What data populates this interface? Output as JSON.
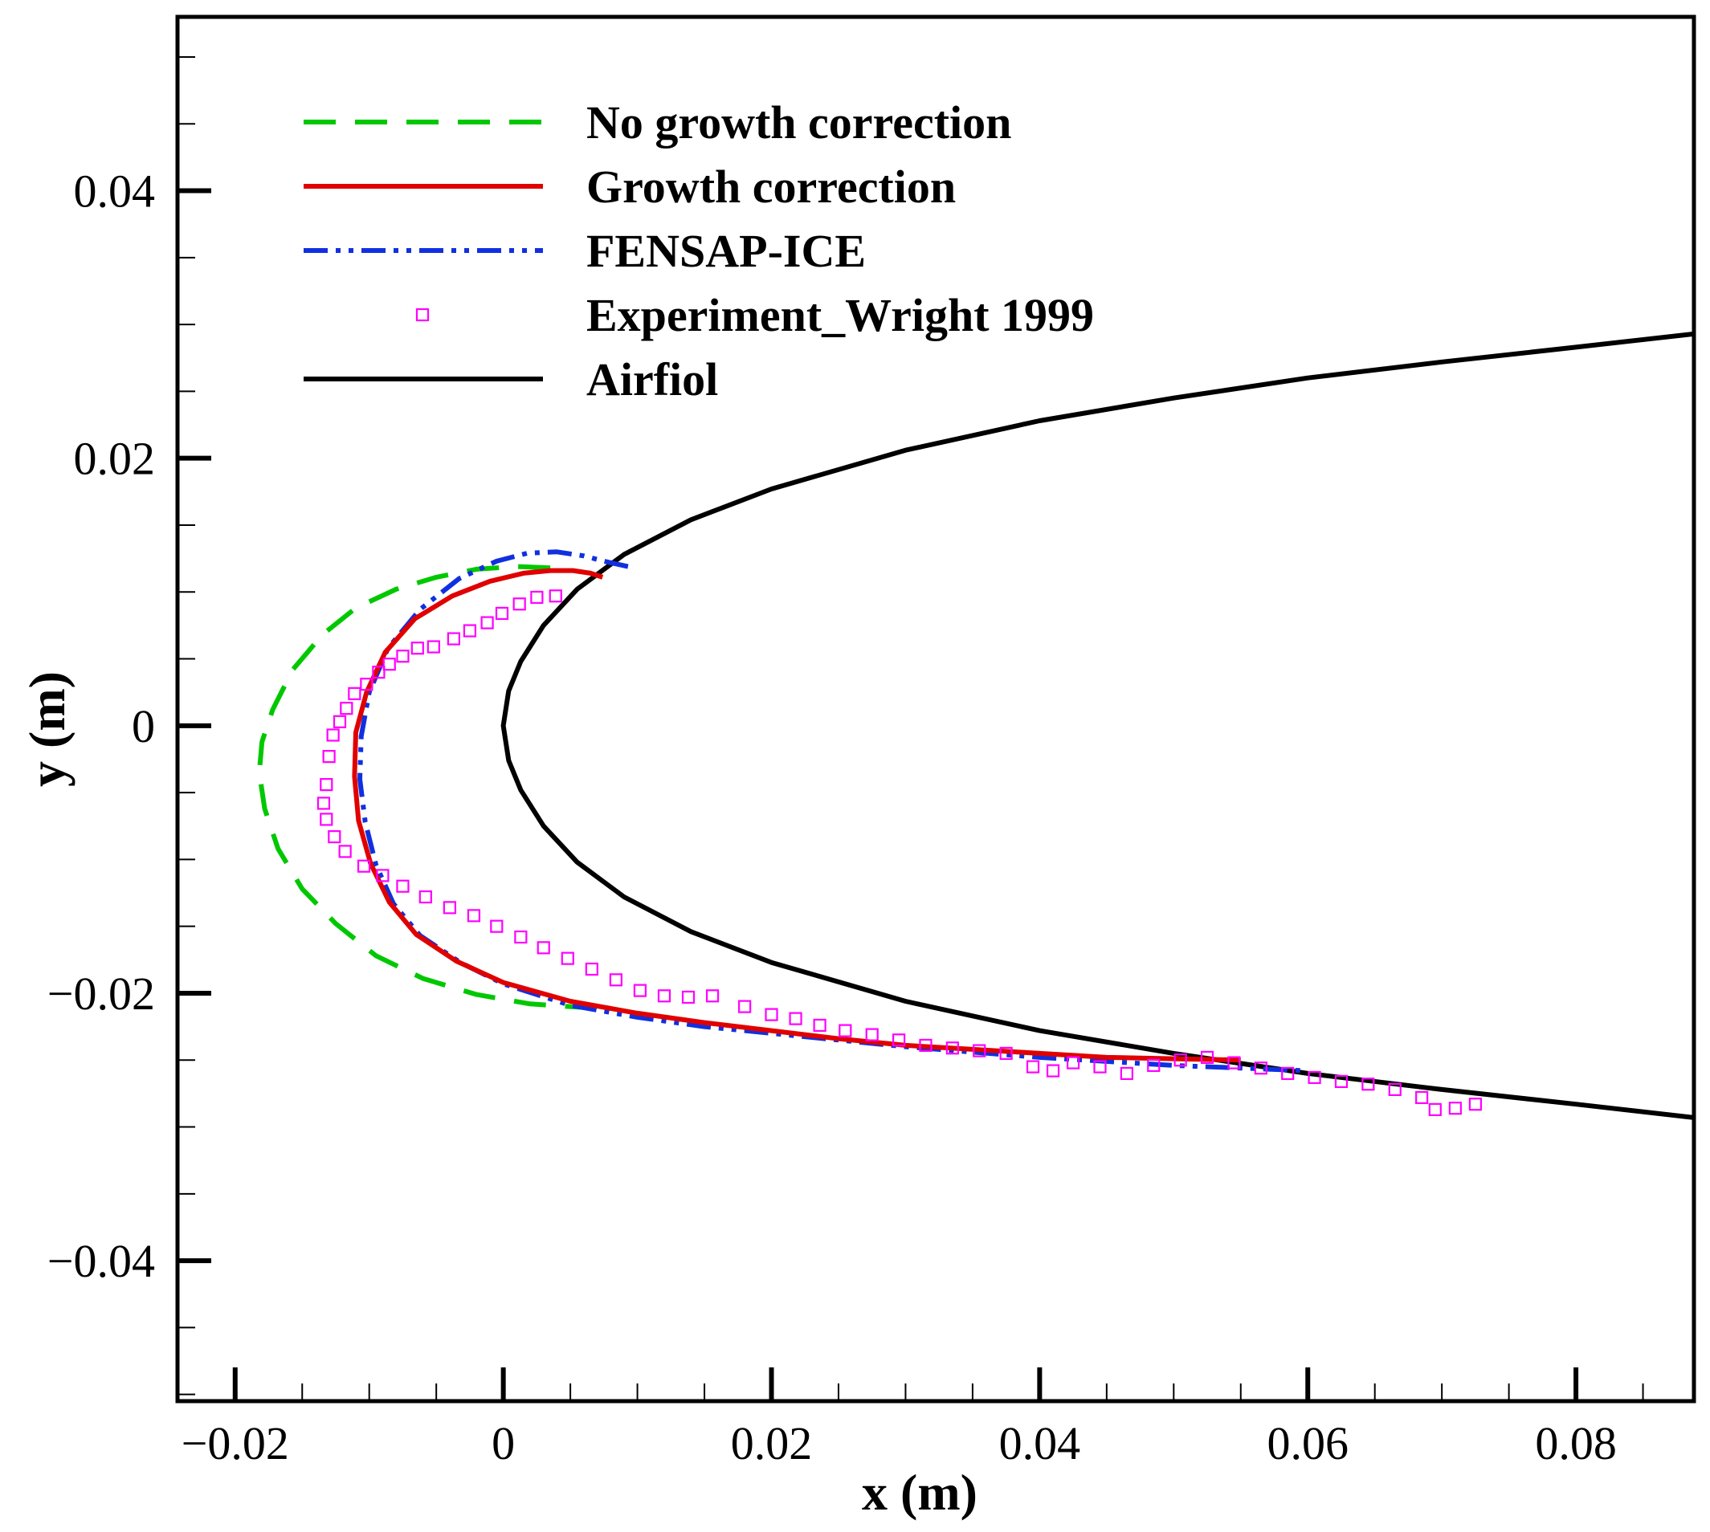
{
  "chart_data": {
    "type": "line",
    "title": "",
    "xlabel": "x (m)",
    "ylabel": "y (m)",
    "xlim": [
      -0.0243,
      0.0888
    ],
    "ylim": [
      -0.0505,
      0.053
    ],
    "grid": false,
    "legend_position": "top-left",
    "x_ticks": [
      {
        "value": -0.02,
        "label": "−0.02"
      },
      {
        "value": 0,
        "label": "0"
      },
      {
        "value": 0.02,
        "label": "0.02"
      },
      {
        "value": 0.04,
        "label": "0.04"
      },
      {
        "value": 0.06,
        "label": "0.06"
      },
      {
        "value": 0.08,
        "label": "0.08"
      }
    ],
    "y_ticks": [
      {
        "value": -0.04,
        "label": "−0.04"
      },
      {
        "value": -0.02,
        "label": "−0.02"
      },
      {
        "value": 0,
        "label": "0"
      },
      {
        "value": 0.02,
        "label": "0.02"
      },
      {
        "value": 0.04,
        "label": "0.04"
      }
    ],
    "x_minor_step": 0.005,
    "y_minor_step": 0.005,
    "series": [
      {
        "name": "No growth correction",
        "style": "dashed",
        "color": "#00c800",
        "x": [
          0.0035,
          0.001,
          -0.002,
          -0.005,
          -0.008,
          -0.011,
          -0.0135,
          -0.0157,
          -0.0172,
          -0.018,
          -0.0182,
          -0.0178,
          -0.0168,
          -0.015,
          -0.0125,
          -0.0095,
          -0.006,
          -0.002,
          0.002,
          0.0065
        ],
        "y": [
          0.0118,
          0.0119,
          0.0117,
          0.0111,
          0.0102,
          0.0088,
          0.0068,
          0.0042,
          0.0012,
          -0.0012,
          -0.0035,
          -0.0062,
          -0.0092,
          -0.0122,
          -0.0148,
          -0.0172,
          -0.0189,
          -0.0201,
          -0.0208,
          -0.0211
        ]
      },
      {
        "name": "Growth correction",
        "style": "solid",
        "color": "#e00000",
        "x": [
          0.0074,
          0.0065,
          0.0052,
          0.0035,
          0.0015,
          -0.001,
          -0.0038,
          -0.0066,
          -0.0088,
          -0.0102,
          -0.011,
          -0.0111,
          -0.0108,
          -0.0099,
          -0.0085,
          -0.0065,
          -0.0035,
          0.0,
          0.005,
          0.01,
          0.015,
          0.02,
          0.025,
          0.03,
          0.035,
          0.04,
          0.045,
          0.05,
          0.055
        ],
        "y": [
          0.0111,
          0.0114,
          0.0116,
          0.0116,
          0.0114,
          0.0108,
          0.0097,
          0.008,
          0.0055,
          0.0025,
          -0.0005,
          -0.0038,
          -0.0071,
          -0.0103,
          -0.0132,
          -0.0156,
          -0.0176,
          -0.0192,
          -0.0206,
          -0.0215,
          -0.0222,
          -0.0228,
          -0.0234,
          -0.0239,
          -0.0242,
          -0.0245,
          -0.0248,
          -0.0249,
          -0.025
        ]
      },
      {
        "name": "FENSAP-ICE",
        "style": "dash-dot-dot",
        "color": "#1030e0",
        "x": [
          0.0093,
          0.0075,
          0.006,
          0.004,
          0.0018,
          -0.0005,
          -0.0033,
          -0.0062,
          -0.0086,
          -0.01,
          -0.0106,
          -0.0107,
          -0.0103,
          -0.0095,
          -0.0082,
          -0.0062,
          -0.0032,
          0.0,
          0.005,
          0.01,
          0.015,
          0.02,
          0.025,
          0.03,
          0.035,
          0.04,
          0.045,
          0.05,
          0.055,
          0.06
        ],
        "y": [
          0.0119,
          0.0123,
          0.0127,
          0.013,
          0.0129,
          0.0123,
          0.011,
          0.0087,
          0.0058,
          0.0025,
          -0.0008,
          -0.004,
          -0.0072,
          -0.0104,
          -0.0133,
          -0.0157,
          -0.0177,
          -0.0193,
          -0.0209,
          -0.0218,
          -0.0225,
          -0.023,
          -0.0235,
          -0.024,
          -0.0244,
          -0.0248,
          -0.0251,
          -0.0254,
          -0.0256,
          -0.0258
        ]
      },
      {
        "name": "Experiment_Wright 1999",
        "style": "markers",
        "color": "#ff00ff",
        "x": [
          0.0039,
          0.0025,
          0.0012,
          -0.0001,
          -0.0012,
          -0.0025,
          -0.0037,
          -0.0052,
          -0.0064,
          -0.0075,
          -0.0085,
          -0.0093,
          -0.0102,
          -0.0111,
          -0.0117,
          -0.0122,
          -0.0127,
          -0.013,
          -0.0132,
          -0.0134,
          -0.0132,
          -0.0126,
          -0.0118,
          -0.0104,
          -0.009,
          -0.0075,
          -0.0058,
          -0.004,
          -0.0022,
          -0.0005,
          0.0013,
          0.003,
          0.0048,
          0.0066,
          0.0084,
          0.0102,
          0.012,
          0.0138,
          0.0156,
          0.018,
          0.02,
          0.0218,
          0.0236,
          0.0255,
          0.0275,
          0.0295,
          0.0315,
          0.0335,
          0.0355,
          0.0375,
          0.0395,
          0.041,
          0.0425,
          0.0445,
          0.0465,
          0.0485,
          0.0505,
          0.0525,
          0.0545,
          0.0565,
          0.0585,
          0.0605,
          0.0625,
          0.0645,
          0.0665,
          0.0685,
          0.0695,
          0.071,
          0.0725
        ],
        "y": [
          0.0097,
          0.0096,
          0.0091,
          0.0084,
          0.0077,
          0.0071,
          0.0065,
          0.0059,
          0.0058,
          0.0052,
          0.0046,
          0.004,
          0.0031,
          0.0024,
          0.0013,
          0.0003,
          -0.0007,
          -0.0023,
          -0.0044,
          -0.0058,
          -0.007,
          -0.0083,
          -0.0094,
          -0.0105,
          -0.0112,
          -0.012,
          -0.0128,
          -0.0136,
          -0.0142,
          -0.015,
          -0.0158,
          -0.0166,
          -0.0174,
          -0.0182,
          -0.019,
          -0.0198,
          -0.0202,
          -0.0203,
          -0.0202,
          -0.021,
          -0.0216,
          -0.0219,
          -0.0224,
          -0.0228,
          -0.0231,
          -0.0235,
          -0.0239,
          -0.0241,
          -0.0243,
          -0.0245,
          -0.0255,
          -0.0258,
          -0.0252,
          -0.0255,
          -0.026,
          -0.0254,
          -0.025,
          -0.0248,
          -0.0252,
          -0.0256,
          -0.026,
          -0.0263,
          -0.0266,
          -0.0268,
          -0.0272,
          -0.0278,
          -0.0287,
          -0.0286,
          -0.0283
        ]
      },
      {
        "name": "Airfiol",
        "style": "solid",
        "color": "#000000",
        "x": [
          0.0888,
          0.08,
          0.07,
          0.06,
          0.05,
          0.04,
          0.03,
          0.02,
          0.014,
          0.009,
          0.0055,
          0.003,
          0.0013,
          0.0004,
          0.0,
          0.0004,
          0.0013,
          0.003,
          0.0055,
          0.009,
          0.014,
          0.02,
          0.03,
          0.04,
          0.05,
          0.06,
          0.07,
          0.08,
          0.0888
        ],
        "y": [
          0.0293,
          0.0283,
          0.0272,
          0.026,
          0.0245,
          0.0228,
          0.0206,
          0.0177,
          0.0154,
          0.0128,
          0.0102,
          0.0075,
          0.0048,
          0.0026,
          0.0,
          -0.0026,
          -0.0048,
          -0.0075,
          -0.0102,
          -0.0128,
          -0.0154,
          -0.0177,
          -0.0206,
          -0.0228,
          -0.0245,
          -0.026,
          -0.0272,
          -0.0283,
          -0.0293
        ]
      }
    ]
  }
}
